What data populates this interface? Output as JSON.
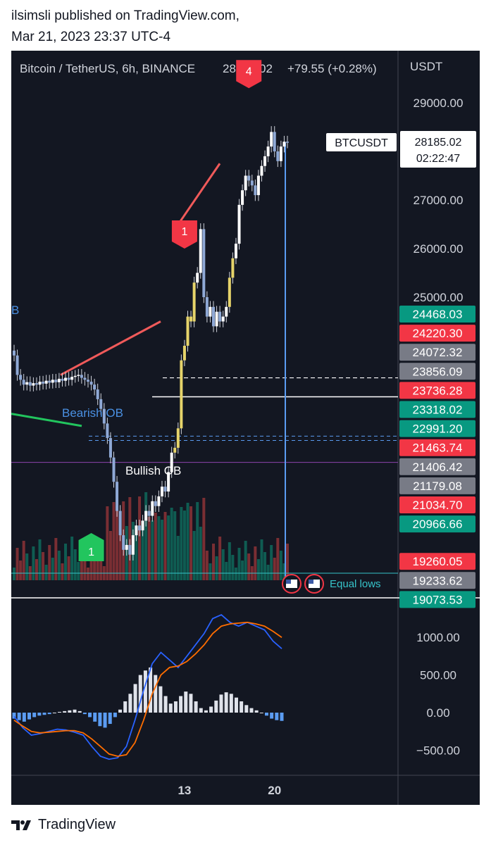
{
  "header": {
    "published_line": "ilsimsli published on TradingView.com,",
    "date_line": "Mar 21, 2023 23:37 UTC-4"
  },
  "footer": {
    "brand": "TradingView",
    "logo_icon": "tradingview-logo-icon"
  },
  "chart_data": {
    "type": "candlestick",
    "title": "Bitcoin / TetherUS, 6h, BINANCE",
    "last_price": "28185.02",
    "change": "+79.55 (+0.28%)",
    "price_axis_label": "USDT",
    "symbol_label": "BTCUSDT",
    "countdown": "02:22:47",
    "y_ticks": [
      "29000.00",
      "27000.00",
      "26000.00",
      "25000.00"
    ],
    "ylim": [
      18900,
      29700
    ],
    "x_ticks": [
      {
        "label": "13",
        "bar": 53
      },
      {
        "label": "20",
        "bar": 81
      }
    ],
    "price_badges": [
      {
        "value": "24468.03",
        "color": "#089981"
      },
      {
        "value": "24220.30",
        "color": "#f23645"
      },
      {
        "value": "24072.32",
        "color": "#787b86"
      },
      {
        "value": "23856.09",
        "color": "#787b86"
      },
      {
        "value": "23736.28",
        "color": "#f23645"
      },
      {
        "value": "23318.02",
        "color": "#089981"
      },
      {
        "value": "22991.20",
        "color": "#089981"
      },
      {
        "value": "21463.74",
        "color": "#f23645"
      },
      {
        "value": "21406.42",
        "color": "#787b86"
      },
      {
        "value": "21179.08",
        "color": "#787b86"
      },
      {
        "value": "21034.70",
        "color": "#f23645"
      },
      {
        "value": "20966.66",
        "color": "#089981"
      },
      {
        "value": "19260.05",
        "color": "#f23645"
      },
      {
        "value": "19233.62",
        "color": "#787b86"
      },
      {
        "value": "19073.53",
        "color": "#089981"
      }
    ],
    "annotations": {
      "bearish_ob": "Bearish OB",
      "bullish_ob": "Bullish OB",
      "equal_lows": "Equal lows",
      "edge_b": "B",
      "markers": [
        {
          "label": "4",
          "color": "#f23645",
          "bar": 73,
          "price": 29300
        },
        {
          "label": "1",
          "color": "#f23645",
          "bar": 53,
          "price": 26000
        },
        {
          "label": "1",
          "color": "#22c55e",
          "bar": 24,
          "price": 20000
        }
      ]
    },
    "candles_close": [
      23800,
      23400,
      23300,
      23200,
      23250,
      23180,
      23230,
      23200,
      23260,
      23220,
      23280,
      23240,
      23300,
      23250,
      23320,
      23280,
      23340,
      23300,
      23360,
      23380,
      23400,
      23340,
      23300,
      23260,
      23200,
      23100,
      22900,
      22700,
      22400,
      22100,
      21700,
      21200,
      20600,
      20100,
      19800,
      19900,
      19700,
      20100,
      20300,
      20200,
      20400,
      20600,
      20500,
      20800,
      20700,
      20900,
      21100,
      21000,
      21400,
      21800,
      21900,
      22300,
      23700,
      24000,
      24600,
      24500,
      25300,
      25500,
      26400,
      25000,
      24600,
      24800,
      24400,
      24700,
      24500,
      24600,
      24800,
      25400,
      25800,
      26100,
      26900,
      27200,
      27500,
      27400,
      27300,
      27100,
      27500,
      27700,
      27900,
      28100,
      28400,
      28000,
      27800,
      28100,
      28200,
      28185
    ],
    "macd": {
      "ylim": [
        -700,
        1400
      ],
      "y_ticks": [
        "1000.00",
        "500.00",
        "0.00",
        "−500.00"
      ],
      "macd_line": [
        -50,
        -200,
        -300,
        -280,
        -250,
        -220,
        -230,
        -260,
        -300,
        -450,
        -580,
        -620,
        -600,
        -450,
        -100,
        300,
        650,
        800,
        700,
        600,
        750,
        900,
        1050,
        1250,
        1300,
        1200,
        1150,
        1200,
        1150,
        1100,
        950,
        850
      ],
      "signal_line": [
        -100,
        -180,
        -250,
        -270,
        -260,
        -250,
        -240,
        -240,
        -270,
        -350,
        -450,
        -550,
        -580,
        -560,
        -400,
        -100,
        250,
        500,
        600,
        620,
        680,
        780,
        900,
        1050,
        1150,
        1180,
        1190,
        1200,
        1180,
        1150,
        1080,
        1000
      ],
      "histogram": [
        -80,
        -100,
        -120,
        -90,
        -60,
        -40,
        -30,
        -20,
        0,
        10,
        20,
        30,
        40,
        20,
        -20,
        -60,
        -120,
        -180,
        -200,
        -150,
        -60,
        40,
        150,
        250,
        380,
        500,
        560,
        600,
        500,
        350,
        220,
        120,
        150,
        220,
        280,
        250,
        150,
        60,
        30,
        80,
        160,
        240,
        270,
        250,
        200,
        150,
        100,
        60,
        30,
        0,
        -40,
        -80,
        -100,
        -110
      ]
    }
  }
}
